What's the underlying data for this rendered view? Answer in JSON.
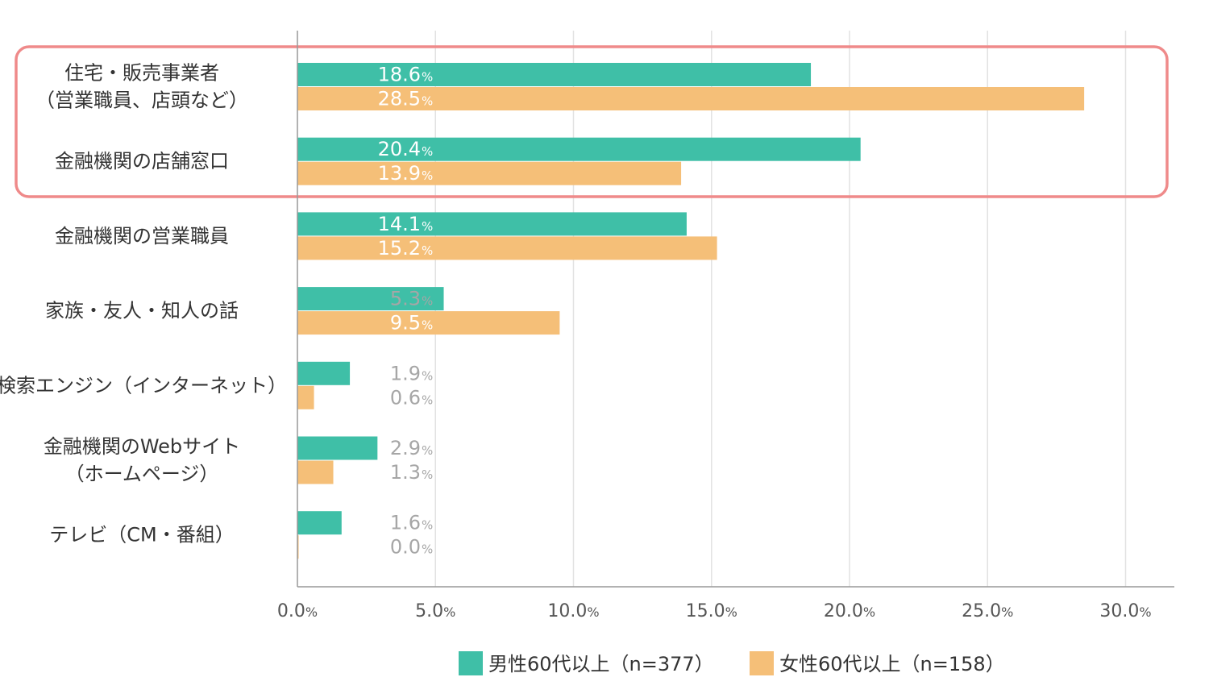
{
  "chart_data": {
    "type": "bar",
    "orientation": "horizontal",
    "categories": [
      [
        "住宅・販売事業者",
        "（営業職員、店頭など）"
      ],
      [
        "金融機関の店舗窓口"
      ],
      [
        "金融機関の営業職員"
      ],
      [
        "家族・友人・知人の話"
      ],
      [
        "検索エンジン（インターネット）"
      ],
      [
        "金融機関のWebサイト",
        "（ホームページ）"
      ],
      [
        "テレビ（CM・番組）"
      ]
    ],
    "series": [
      {
        "name": "男性60代以上（n=377）",
        "color": "#3fbfa7",
        "values": [
          18.6,
          20.4,
          14.1,
          5.3,
          1.9,
          2.9,
          1.6
        ]
      },
      {
        "name": "女性60代以上（n=158）",
        "color": "#f5bf78",
        "values": [
          28.5,
          13.9,
          15.2,
          9.5,
          0.6,
          1.3,
          0.0
        ]
      }
    ],
    "xlim": [
      0,
      30
    ],
    "xticks": [
      "0.0",
      "5.0",
      "10.0",
      "15.0",
      "20.0",
      "25.0",
      "30.0"
    ],
    "unit": "%",
    "grid": true,
    "legend_position": "bottom-center",
    "highlight": {
      "categories": [
        0,
        1
      ],
      "color": "#ef8a8a"
    },
    "colors": {
      "inside_label": "#ffffff",
      "outside_label": "#a6a6a6",
      "grid": "#e2e2e2",
      "axis": "#999999"
    }
  }
}
